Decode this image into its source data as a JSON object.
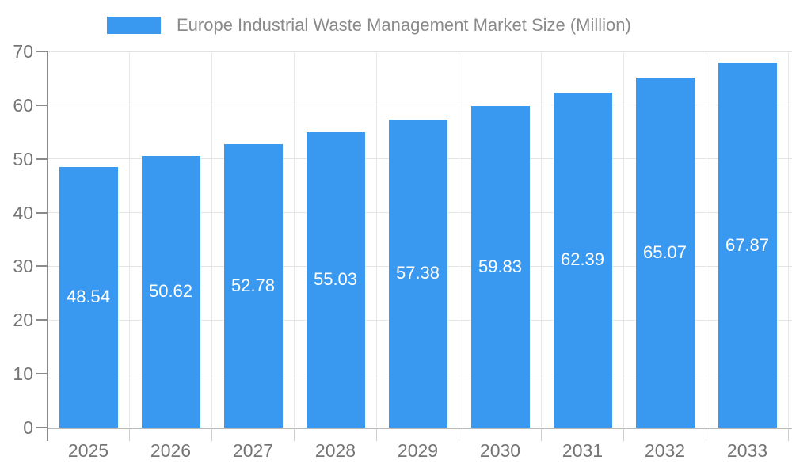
{
  "legend": {
    "label": "Europe Industrial Waste Management Market Size (Million)"
  },
  "chart_data": {
    "type": "bar",
    "title": "Europe Industrial Waste Management Market Size (Million)",
    "categories": [
      "2025",
      "2026",
      "2027",
      "2028",
      "2029",
      "2030",
      "2031",
      "2032",
      "2033"
    ],
    "values": [
      48.54,
      50.62,
      52.78,
      55.03,
      57.38,
      59.83,
      62.39,
      65.07,
      67.87
    ],
    "value_labels": [
      "48.54",
      "50.62",
      "52.78",
      "55.03",
      "57.38",
      "59.83",
      "62.39",
      "65.07",
      "67.87"
    ],
    "xlabel": "",
    "ylabel": "",
    "ylim": [
      0,
      70
    ],
    "yticks": [
      0,
      10,
      20,
      30,
      40,
      50,
      60,
      70
    ],
    "grid": true,
    "legend_position": "top-center",
    "value_label_position": "inside-center",
    "colors": {
      "bar": "#3999F0",
      "bar_label": "#ffffff",
      "axis_label": "#757575",
      "title": "#8a8a8a",
      "gridline": "#e4e4e4",
      "y_axis_line": "#8a8a8a",
      "x_axis_line": "#b9b9b9"
    }
  }
}
